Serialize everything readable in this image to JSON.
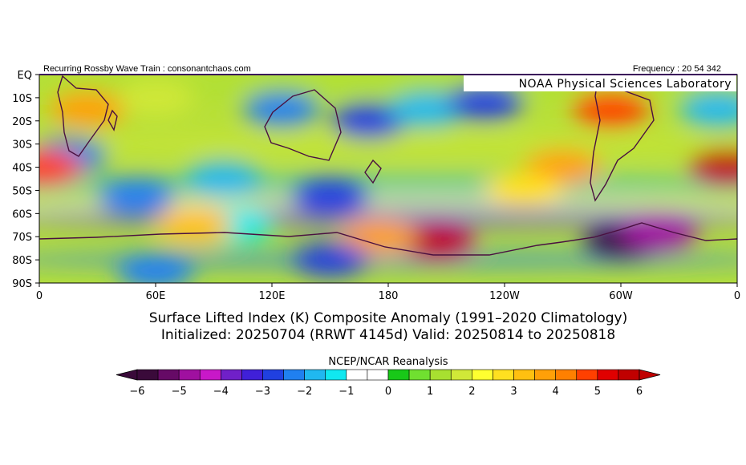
{
  "header": {
    "left": "Recurring Rossby Wave Train : consonantchaos.com",
    "right": "Frequency : 20 54 342"
  },
  "credit": "NOAA Physical Sciences Laboratory",
  "y_axis": [
    "EQ",
    "10S",
    "20S",
    "30S",
    "40S",
    "50S",
    "60S",
    "70S",
    "80S",
    "90S"
  ],
  "x_axis": [
    "0",
    "60E",
    "120E",
    "180",
    "120W",
    "60W",
    "0"
  ],
  "title": {
    "line1": "Surface Lifted Index (K) Composite Anomaly (1991–2020 Climatology)",
    "line2": "Initialized: 20250704 (RRWT 4145d) Valid: 20250814 to 20250818"
  },
  "colorbar": {
    "label": "NCEP/NCAR Reanalysis",
    "ticks": [
      "−6",
      "−5",
      "−4",
      "−3",
      "−2",
      "−1",
      "0",
      "1",
      "2",
      "3",
      "4",
      "5",
      "6"
    ],
    "colors": [
      "#3a0a3a",
      "#660a66",
      "#a010a0",
      "#c818c8",
      "#7020c8",
      "#4020d8",
      "#2040e0",
      "#2080f0",
      "#20b8f0",
      "#10e8f0",
      "#ffffff",
      "#ffffff",
      "#18c818",
      "#70e030",
      "#a8e030",
      "#d0e838",
      "#ffff30",
      "#ffe020",
      "#ffc010",
      "#ffa008",
      "#ff8000",
      "#ff4000",
      "#e00000",
      "#c00000"
    ]
  },
  "anomaly_blobs": [
    {
      "lon": 15,
      "lat": -35,
      "value": -2.5
    },
    {
      "lon": 50,
      "lat": -52,
      "value": -2.5
    },
    {
      "lon": 95,
      "lat": -45,
      "value": -2
    },
    {
      "lon": 25,
      "lat": -15,
      "value": 4
    },
    {
      "lon": 2,
      "lat": -40,
      "value": 5
    },
    {
      "lon": 60,
      "lat": -10,
      "value": 2
    },
    {
      "lon": 125,
      "lat": -15,
      "value": -2.5
    },
    {
      "lon": 150,
      "lat": -52,
      "value": -3
    },
    {
      "lon": 170,
      "lat": -20,
      "value": -3
    },
    {
      "lon": 200,
      "lat": -15,
      "value": -2
    },
    {
      "lon": 230,
      "lat": -12,
      "value": -3
    },
    {
      "lon": 205,
      "lat": -72,
      "value": 6
    },
    {
      "lon": 175,
      "lat": -70,
      "value": 4
    },
    {
      "lon": 300,
      "lat": -72,
      "value": -6
    },
    {
      "lon": 320,
      "lat": -68,
      "value": -5
    },
    {
      "lon": 295,
      "lat": -15,
      "value": 5
    },
    {
      "lon": 355,
      "lat": -40,
      "value": 6
    },
    {
      "lon": 350,
      "lat": -15,
      "value": -2
    },
    {
      "lon": 60,
      "lat": -85,
      "value": -2.5
    },
    {
      "lon": 150,
      "lat": -80,
      "value": -3
    },
    {
      "lon": 100,
      "lat": -65,
      "value": -1.5
    },
    {
      "lon": 270,
      "lat": -40,
      "value": 4
    },
    {
      "lon": 250,
      "lat": -50,
      "value": 3
    },
    {
      "lon": 80,
      "lat": -65,
      "value": 3.5
    }
  ]
}
